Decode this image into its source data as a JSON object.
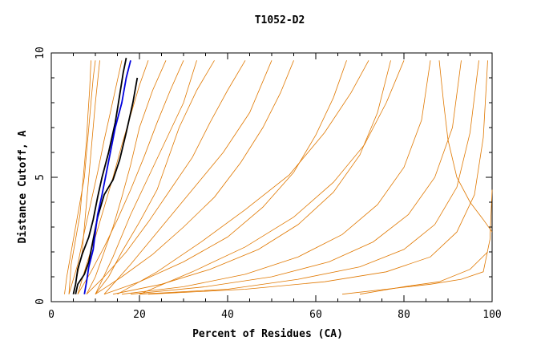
{
  "chart_data": {
    "type": "line",
    "title": "T1052-D2",
    "xlabel": "Percent of Residues (CA)",
    "ylabel": "Distance Cutoff, A",
    "xlim": [
      0,
      100
    ],
    "ylim": [
      0,
      10
    ],
    "x_ticks": [
      0,
      20,
      40,
      60,
      80,
      100
    ],
    "y_ticks": [
      0,
      5,
      10
    ],
    "grid": false,
    "colors": {
      "models": "#e07800",
      "highlight_black": "#000000",
      "highlight_blue": "#0000dd"
    },
    "series": [
      {
        "color": "black",
        "points": [
          [
            5,
            0.3
          ],
          [
            5.5,
            0.7
          ],
          [
            6,
            1.3
          ],
          [
            7,
            1.9
          ],
          [
            8.5,
            2.6
          ],
          [
            9.5,
            3.3
          ],
          [
            10.5,
            4.2
          ],
          [
            11.5,
            5
          ],
          [
            13,
            6
          ],
          [
            14.5,
            7.2
          ],
          [
            15.5,
            8.3
          ],
          [
            16.3,
            9.2
          ],
          [
            17,
            9.8
          ]
        ]
      },
      {
        "color": "black",
        "points": [
          [
            5.5,
            0.3
          ],
          [
            6,
            0.7
          ],
          [
            7.5,
            1.1
          ],
          [
            8.5,
            1.6
          ],
          [
            9.5,
            2.5
          ],
          [
            10.5,
            3.4
          ],
          [
            12,
            4.3
          ],
          [
            14,
            4.9
          ],
          [
            15.5,
            5.7
          ],
          [
            17,
            6.8
          ],
          [
            18.5,
            8
          ],
          [
            19.5,
            9
          ]
        ]
      },
      {
        "color": "blue",
        "points": [
          [
            7.5,
            0.3
          ],
          [
            8,
            0.8
          ],
          [
            8.5,
            1.4
          ],
          [
            9.5,
            2.1
          ],
          [
            10,
            2.8
          ],
          [
            10.5,
            3.5
          ],
          [
            11.5,
            4.3
          ],
          [
            12.5,
            5.2
          ],
          [
            13.5,
            6.1
          ],
          [
            14.5,
            7
          ],
          [
            16,
            8
          ],
          [
            17,
            9
          ],
          [
            18,
            9.7
          ]
        ]
      },
      {
        "color": "orange",
        "points": [
          [
            3,
            0.3
          ],
          [
            3.5,
            1
          ],
          [
            4.5,
            2
          ],
          [
            5.5,
            3
          ],
          [
            6.5,
            4
          ],
          [
            7.5,
            5
          ],
          [
            8,
            6
          ],
          [
            8.5,
            7
          ],
          [
            9,
            8
          ],
          [
            9.5,
            9
          ],
          [
            10,
            9.7
          ]
        ]
      },
      {
        "color": "orange",
        "points": [
          [
            4,
            0.3
          ],
          [
            4.5,
            1.5
          ],
          [
            5.5,
            2.5
          ],
          [
            6.5,
            3.5
          ],
          [
            7,
            4.5
          ],
          [
            7.5,
            5.5
          ],
          [
            8,
            6.5
          ],
          [
            8.3,
            7.5
          ],
          [
            8.7,
            8.5
          ],
          [
            9,
            9.7
          ]
        ]
      },
      {
        "color": "orange",
        "points": [
          [
            4,
            0.3
          ],
          [
            6,
            1.5
          ],
          [
            7.5,
            2.8
          ],
          [
            9,
            4
          ],
          [
            10.5,
            5.2
          ],
          [
            12,
            6.5
          ],
          [
            13.5,
            7.7
          ],
          [
            15,
            8.9
          ],
          [
            16,
            9.7
          ]
        ]
      },
      {
        "color": "orange",
        "points": [
          [
            6,
            0.3
          ],
          [
            8,
            1.5
          ],
          [
            10,
            2.6
          ],
          [
            12,
            3.8
          ],
          [
            14,
            5
          ],
          [
            16,
            6.3
          ],
          [
            18,
            7.5
          ],
          [
            20,
            8.7
          ],
          [
            22,
            9.7
          ]
        ]
      },
      {
        "color": "orange",
        "points": [
          [
            6,
            0.3
          ],
          [
            9,
            1.2
          ],
          [
            12,
            2.2
          ],
          [
            15,
            3.3
          ],
          [
            18,
            4.5
          ],
          [
            21,
            5.8
          ],
          [
            24,
            7.2
          ],
          [
            27,
            8.5
          ],
          [
            30,
            9.7
          ]
        ]
      },
      {
        "color": "orange",
        "points": [
          [
            8,
            0.3
          ],
          [
            12,
            1
          ],
          [
            17,
            2
          ],
          [
            22,
            3.2
          ],
          [
            27,
            4.5
          ],
          [
            32,
            5.8
          ],
          [
            36,
            7.2
          ],
          [
            40,
            8.5
          ],
          [
            44,
            9.7
          ]
        ]
      },
      {
        "color": "orange",
        "points": [
          [
            10,
            0.3
          ],
          [
            16,
            1
          ],
          [
            23,
            1.9
          ],
          [
            30,
            3
          ],
          [
            37,
            4.2
          ],
          [
            43,
            5.6
          ],
          [
            48,
            7
          ],
          [
            52,
            8.4
          ],
          [
            55,
            9.7
          ]
        ]
      },
      {
        "color": "orange",
        "points": [
          [
            12,
            0.3
          ],
          [
            20,
            0.8
          ],
          [
            30,
            1.6
          ],
          [
            40,
            2.6
          ],
          [
            48,
            3.8
          ],
          [
            55,
            5.2
          ],
          [
            60,
            6.7
          ],
          [
            64,
            8.2
          ],
          [
            67,
            9.7
          ]
        ]
      },
      {
        "color": "orange",
        "points": [
          [
            14,
            0.3
          ],
          [
            25,
            0.7
          ],
          [
            36,
            1.3
          ],
          [
            47,
            2.1
          ],
          [
            56,
            3.1
          ],
          [
            64,
            4.4
          ],
          [
            70,
            5.9
          ],
          [
            74,
            7.6
          ],
          [
            77,
            9.7
          ]
        ]
      },
      {
        "color": "orange",
        "points": [
          [
            16,
            0.3
          ],
          [
            30,
            0.6
          ],
          [
            44,
            1.1
          ],
          [
            56,
            1.8
          ],
          [
            66,
            2.7
          ],
          [
            74,
            3.9
          ],
          [
            80,
            5.4
          ],
          [
            84,
            7.3
          ],
          [
            86,
            9.7
          ]
        ]
      },
      {
        "color": "orange",
        "points": [
          [
            18,
            0.3
          ],
          [
            35,
            0.6
          ],
          [
            50,
            1
          ],
          [
            63,
            1.6
          ],
          [
            73,
            2.4
          ],
          [
            81,
            3.5
          ],
          [
            87,
            5
          ],
          [
            91,
            7
          ],
          [
            93,
            9.7
          ]
        ]
      },
      {
        "color": "orange",
        "points": [
          [
            20,
            0.3
          ],
          [
            40,
            0.5
          ],
          [
            56,
            0.9
          ],
          [
            70,
            1.4
          ],
          [
            80,
            2.1
          ],
          [
            87,
            3.1
          ],
          [
            92,
            4.6
          ],
          [
            95,
            6.8
          ],
          [
            97,
            9.7
          ]
        ]
      },
      {
        "color": "orange",
        "points": [
          [
            22,
            0.3
          ],
          [
            44,
            0.5
          ],
          [
            62,
            0.8
          ],
          [
            76,
            1.2
          ],
          [
            86,
            1.8
          ],
          [
            92,
            2.8
          ],
          [
            96,
            4.3
          ],
          [
            98,
            6.6
          ],
          [
            99,
            9.7
          ]
        ]
      },
      {
        "color": "orange",
        "points": [
          [
            10,
            0.3
          ],
          [
            14,
            1.8
          ],
          [
            18,
            3.5
          ],
          [
            22,
            5
          ],
          [
            26,
            6.5
          ],
          [
            30,
            8
          ],
          [
            33,
            9.7
          ]
        ]
      },
      {
        "color": "orange",
        "points": [
          [
            12,
            0.3
          ],
          [
            18,
            1.5
          ],
          [
            25,
            3
          ],
          [
            32,
            4.5
          ],
          [
            39,
            6
          ],
          [
            45,
            7.6
          ],
          [
            50,
            9.7
          ]
        ]
      },
      {
        "color": "orange",
        "points": [
          [
            15,
            0.3
          ],
          [
            24,
            1.2
          ],
          [
            34,
            2.4
          ],
          [
            44,
            3.7
          ],
          [
            54,
            5.1
          ],
          [
            62,
            6.8
          ],
          [
            68,
            8.4
          ],
          [
            72,
            9.7
          ]
        ]
      },
      {
        "color": "orange",
        "points": [
          [
            10,
            0.3
          ],
          [
            13,
            1
          ],
          [
            16,
            2
          ],
          [
            20,
            3.2
          ],
          [
            24,
            4.5
          ],
          [
            26,
            5.5
          ],
          [
            29,
            7
          ],
          [
            33,
            8.5
          ],
          [
            37,
            9.7
          ]
        ]
      },
      {
        "color": "orange",
        "points": [
          [
            8,
            0.3
          ],
          [
            10,
            1
          ],
          [
            12,
            2
          ],
          [
            14,
            3
          ],
          [
            16,
            4.2
          ],
          [
            18,
            5.5
          ],
          [
            20,
            7
          ],
          [
            23,
            8.5
          ],
          [
            26,
            9.7
          ]
        ]
      },
      {
        "color": "orange",
        "points": [
          [
            66,
            0.3
          ],
          [
            76,
            0.5
          ],
          [
            86,
            0.7
          ],
          [
            93,
            0.9
          ],
          [
            98,
            1.2
          ],
          [
            99.5,
            2.5
          ],
          [
            100,
            4.5
          ]
        ]
      },
      {
        "color": "orange",
        "points": [
          [
            70,
            0.3
          ],
          [
            80,
            0.6
          ],
          [
            88,
            0.8
          ],
          [
            95,
            1.3
          ],
          [
            99,
            2
          ]
        ]
      },
      {
        "color": "orange",
        "points": [
          [
            88,
            9.7
          ],
          [
            89,
            8
          ],
          [
            90,
            6.5
          ],
          [
            92,
            5
          ],
          [
            95,
            4
          ],
          [
            98,
            3.3
          ],
          [
            100,
            2.8
          ]
        ]
      },
      {
        "color": "orange",
        "points": [
          [
            5,
            0.3
          ],
          [
            7,
            2
          ],
          [
            8,
            4
          ],
          [
            9,
            6
          ],
          [
            10,
            8
          ],
          [
            11,
            9.7
          ]
        ]
      },
      {
        "color": "orange",
        "points": [
          [
            20,
            0.3
          ],
          [
            32,
            1.2
          ],
          [
            44,
            2.2
          ],
          [
            55,
            3.4
          ],
          [
            64,
            4.8
          ],
          [
            71,
            6.3
          ],
          [
            76,
            8
          ],
          [
            80,
            9.7
          ]
        ]
      }
    ]
  }
}
